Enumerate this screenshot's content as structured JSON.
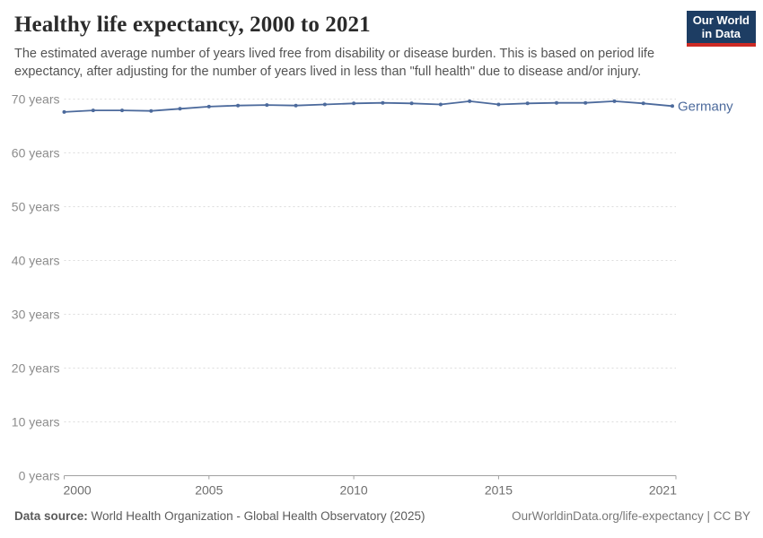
{
  "header": {
    "title": "Healthy life expectancy, 2000 to 2021",
    "subtitle": "The estimated average number of years lived free from disability or disease burden. This is based on period life expectancy, after adjusting for the number of years lived in less than \"full health\" due to disease and/or injury."
  },
  "logo": {
    "lines": [
      "Our World",
      "in Data"
    ],
    "bg_color": "#1d3d63",
    "bar_color": "#cc2a24"
  },
  "footer": {
    "datasource_label": "Data source:",
    "datasource_text": " World Health Organization - Global Health Observatory (2025)",
    "link_text": "OurWorldinData.org/life-expectancy | CC BY"
  },
  "chart_data": {
    "type": "line",
    "title": "Healthy life expectancy, 2000 to 2021",
    "x": [
      2000,
      2001,
      2002,
      2003,
      2004,
      2005,
      2006,
      2007,
      2008,
      2009,
      2010,
      2011,
      2012,
      2013,
      2014,
      2015,
      2016,
      2017,
      2018,
      2019,
      2020,
      2021
    ],
    "series": [
      {
        "name": "Germany",
        "color": "#4c6a9c",
        "values": [
          67.6,
          67.9,
          67.9,
          67.8,
          68.2,
          68.6,
          68.8,
          68.9,
          68.8,
          69.0,
          69.2,
          69.3,
          69.2,
          69.0,
          69.6,
          69.0,
          69.2,
          69.3,
          69.3,
          69.6,
          69.2,
          68.7
        ]
      }
    ],
    "xticks": [
      2000,
      2005,
      2010,
      2015,
      2021
    ],
    "yticks": [
      0,
      10,
      20,
      30,
      40,
      50,
      60,
      70
    ],
    "ytick_suffix": " years",
    "xlim": [
      2000,
      2021
    ],
    "ylim": [
      0,
      70
    ],
    "grid": "horizontal-dashed",
    "gridline_color": "#dcdcdc",
    "axis_color": "#a1a1a1",
    "legend_position": "end-of-line-label"
  }
}
